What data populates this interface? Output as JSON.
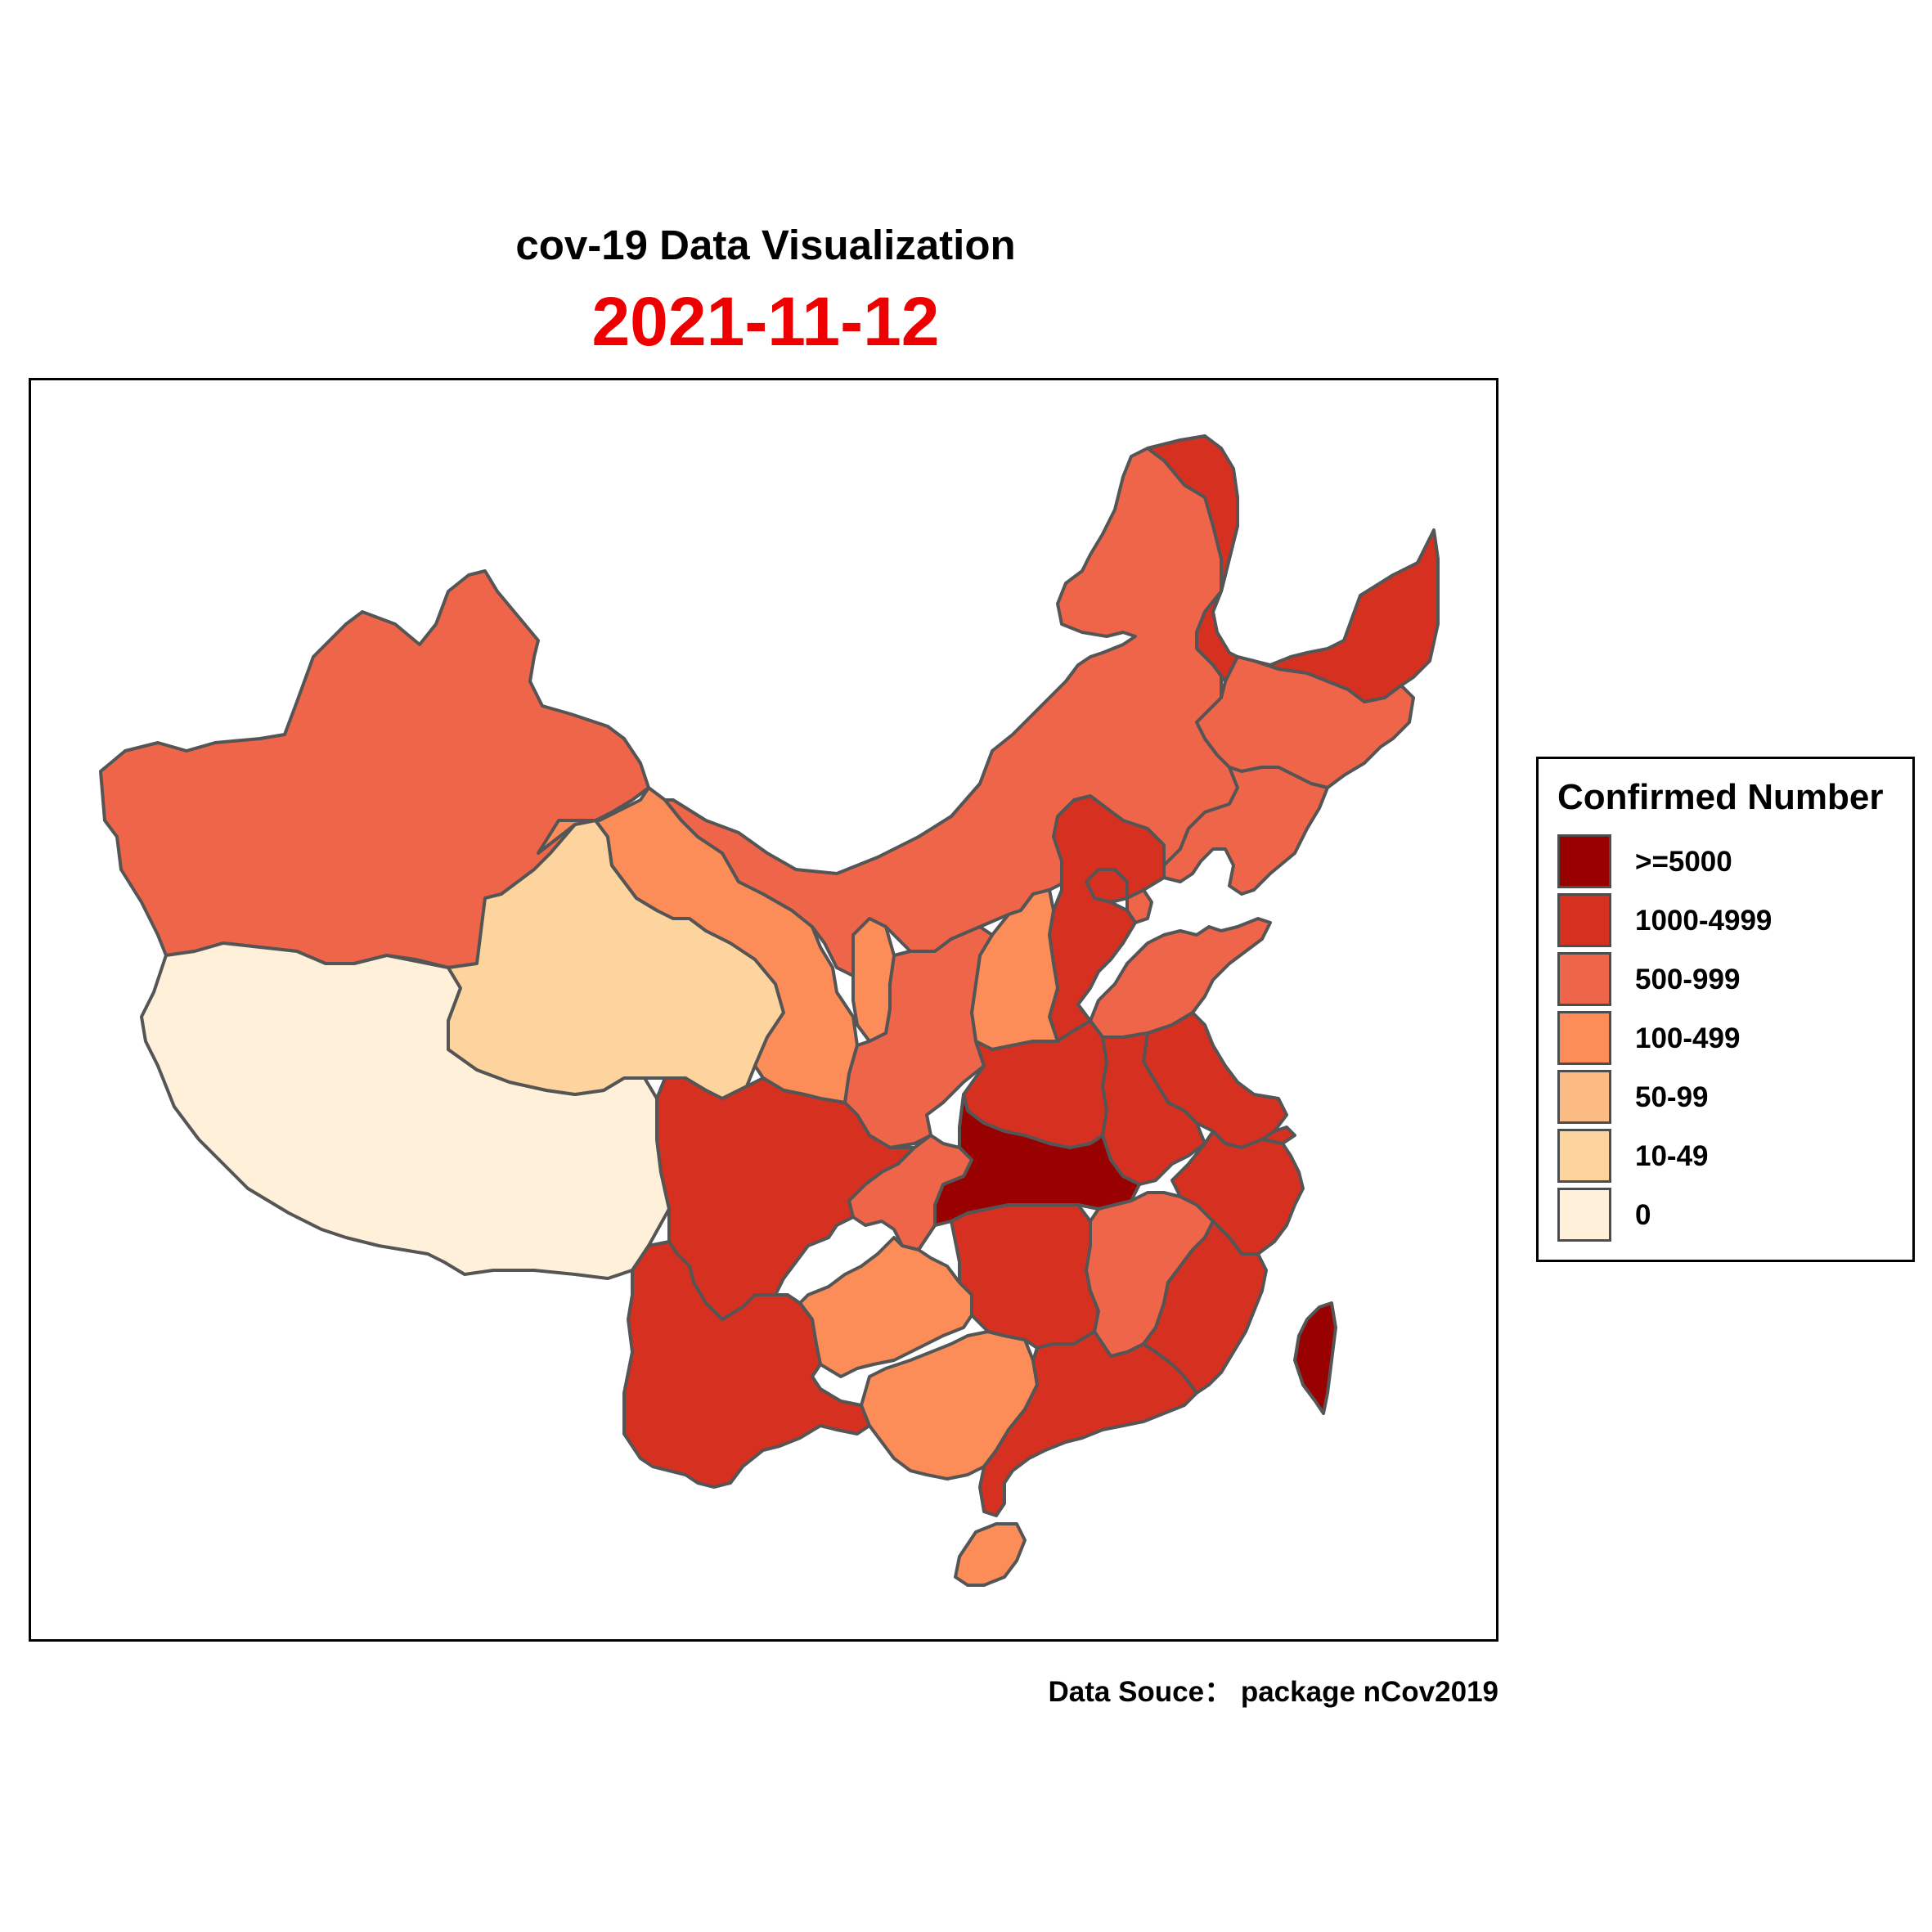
{
  "header": {
    "title": "cov-19 Data Visualization",
    "date": "2021-11-12",
    "date_color": "#ee0000"
  },
  "caption": "Data Souce： package nCov2019",
  "legend": {
    "title": "Confirmed Number",
    "items": [
      {
        "label": ">=5000",
        "color": "#990000"
      },
      {
        "label": "1000-4999",
        "color": "#d63020"
      },
      {
        "label": "500-999",
        "color": "#ee654a"
      },
      {
        "label": "100-499",
        "color": "#fc8d59"
      },
      {
        "label": "50-99",
        "color": "#fdbb84"
      },
      {
        "label": "10-49",
        "color": "#fdd49e"
      },
      {
        "label": "0",
        "color": "#fef0d9"
      }
    ]
  },
  "regions": [
    {
      "name": "Xinjiang",
      "class": "500-999"
    },
    {
      "name": "Tibet",
      "class": "0"
    },
    {
      "name": "Qinghai",
      "class": "10-49"
    },
    {
      "name": "Gansu",
      "class": "100-499"
    },
    {
      "name": "Inner Mongolia",
      "class": "500-999"
    },
    {
      "name": "Heilongjiang",
      "class": "1000-4999"
    },
    {
      "name": "Jilin",
      "class": "500-999"
    },
    {
      "name": "Liaoning",
      "class": "500-999"
    },
    {
      "name": "Beijing",
      "class": "1000-4999"
    },
    {
      "name": "Tianjin",
      "class": "500-999"
    },
    {
      "name": "Hebei",
      "class": "1000-4999"
    },
    {
      "name": "Shanxi",
      "class": "100-499"
    },
    {
      "name": "Shaanxi",
      "class": "500-999"
    },
    {
      "name": "Ningxia",
      "class": "100-499"
    },
    {
      "name": "Shandong",
      "class": "500-999"
    },
    {
      "name": "Henan",
      "class": "1000-4999"
    },
    {
      "name": "Jiangsu",
      "class": "1000-4999"
    },
    {
      "name": "Anhui",
      "class": "1000-4999"
    },
    {
      "name": "Shanghai",
      "class": "1000-4999"
    },
    {
      "name": "Hubei",
      "class": ">=5000"
    },
    {
      "name": "Sichuan",
      "class": "1000-4999"
    },
    {
      "name": "Chongqing",
      "class": "500-999"
    },
    {
      "name": "Yunnan",
      "class": "1000-4999"
    },
    {
      "name": "Guizhou",
      "class": "100-499"
    },
    {
      "name": "Guangxi",
      "class": "100-499"
    },
    {
      "name": "Hunan",
      "class": "1000-4999"
    },
    {
      "name": "Jiangxi",
      "class": "500-999"
    },
    {
      "name": "Zhejiang",
      "class": "1000-4999"
    },
    {
      "name": "Fujian",
      "class": "1000-4999"
    },
    {
      "name": "Guangdong",
      "class": "1000-4999"
    },
    {
      "name": "Hainan",
      "class": "100-499"
    },
    {
      "name": "Taiwan",
      "class": ">=5000"
    }
  ]
}
